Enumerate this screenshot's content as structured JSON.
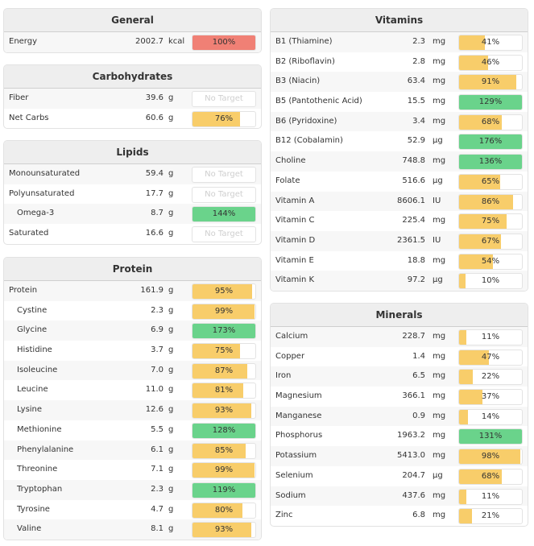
{
  "colors": {
    "under": "#f8cd6a",
    "over": "#6ad38b",
    "energy": "#f08075"
  },
  "panels": [
    {
      "id": "general",
      "title": "General",
      "side": "L",
      "items": [
        {
          "name": "Energy",
          "value": "2002.7",
          "unit": "kcal",
          "pct": 100,
          "label": "100%",
          "color": "energy"
        }
      ]
    },
    {
      "id": "carbohydrates",
      "title": "Carbohydrates",
      "side": "L",
      "items": [
        {
          "name": "Fiber",
          "value": "39.6",
          "unit": "g",
          "pct": null,
          "label": "No Target"
        },
        {
          "name": "Net Carbs",
          "value": "60.6",
          "unit": "g",
          "pct": 76,
          "label": "76%"
        }
      ]
    },
    {
      "id": "lipids",
      "title": "Lipids",
      "side": "L",
      "items": [
        {
          "name": "Monounsaturated",
          "value": "59.4",
          "unit": "g",
          "pct": null,
          "label": "No Target"
        },
        {
          "name": "Polyunsaturated",
          "value": "17.7",
          "unit": "g",
          "pct": null,
          "label": "No Target"
        },
        {
          "name": "Omega-3",
          "value": "8.7",
          "unit": "g",
          "pct": 144,
          "label": "144%",
          "indent": true
        },
        {
          "name": "Saturated",
          "value": "16.6",
          "unit": "g",
          "pct": null,
          "label": "No Target"
        }
      ]
    },
    {
      "id": "protein",
      "title": "Protein",
      "side": "L",
      "items": [
        {
          "name": "Protein",
          "value": "161.9",
          "unit": "g",
          "pct": 95,
          "label": "95%"
        },
        {
          "name": "Cystine",
          "value": "2.3",
          "unit": "g",
          "pct": 99,
          "label": "99%",
          "indent": true
        },
        {
          "name": "Glycine",
          "value": "6.9",
          "unit": "g",
          "pct": 173,
          "label": "173%",
          "indent": true
        },
        {
          "name": "Histidine",
          "value": "3.7",
          "unit": "g",
          "pct": 75,
          "label": "75%",
          "indent": true
        },
        {
          "name": "Isoleucine",
          "value": "7.0",
          "unit": "g",
          "pct": 87,
          "label": "87%",
          "indent": true
        },
        {
          "name": "Leucine",
          "value": "11.0",
          "unit": "g",
          "pct": 81,
          "label": "81%",
          "indent": true
        },
        {
          "name": "Lysine",
          "value": "12.6",
          "unit": "g",
          "pct": 93,
          "label": "93%",
          "indent": true
        },
        {
          "name": "Methionine",
          "value": "5.5",
          "unit": "g",
          "pct": 128,
          "label": "128%",
          "indent": true
        },
        {
          "name": "Phenylalanine",
          "value": "6.1",
          "unit": "g",
          "pct": 85,
          "label": "85%",
          "indent": true
        },
        {
          "name": "Threonine",
          "value": "7.1",
          "unit": "g",
          "pct": 99,
          "label": "99%",
          "indent": true
        },
        {
          "name": "Tryptophan",
          "value": "2.3",
          "unit": "g",
          "pct": 119,
          "label": "119%",
          "indent": true
        },
        {
          "name": "Tyrosine",
          "value": "4.7",
          "unit": "g",
          "pct": 80,
          "label": "80%",
          "indent": true
        },
        {
          "name": "Valine",
          "value": "8.1",
          "unit": "g",
          "pct": 93,
          "label": "93%",
          "indent": true
        }
      ]
    },
    {
      "id": "vitamins",
      "title": "Vitamins",
      "side": "R",
      "items": [
        {
          "name": "B1 (Thiamine)",
          "value": "2.3",
          "unit": "mg",
          "pct": 41,
          "label": "41%"
        },
        {
          "name": "B2 (Riboflavin)",
          "value": "2.8",
          "unit": "mg",
          "pct": 46,
          "label": "46%"
        },
        {
          "name": "B3 (Niacin)",
          "value": "63.4",
          "unit": "mg",
          "pct": 91,
          "label": "91%"
        },
        {
          "name": "B5 (Pantothenic Acid)",
          "value": "15.5",
          "unit": "mg",
          "pct": 129,
          "label": "129%"
        },
        {
          "name": "B6 (Pyridoxine)",
          "value": "3.4",
          "unit": "mg",
          "pct": 68,
          "label": "68%"
        },
        {
          "name": "B12 (Cobalamin)",
          "value": "52.9",
          "unit": "µg",
          "pct": 176,
          "label": "176%"
        },
        {
          "name": "Choline",
          "value": "748.8",
          "unit": "mg",
          "pct": 136,
          "label": "136%"
        },
        {
          "name": "Folate",
          "value": "516.6",
          "unit": "µg",
          "pct": 65,
          "label": "65%"
        },
        {
          "name": "Vitamin A",
          "value": "8606.1",
          "unit": "IU",
          "pct": 86,
          "label": "86%"
        },
        {
          "name": "Vitamin C",
          "value": "225.4",
          "unit": "mg",
          "pct": 75,
          "label": "75%"
        },
        {
          "name": "Vitamin D",
          "value": "2361.5",
          "unit": "IU",
          "pct": 67,
          "label": "67%"
        },
        {
          "name": "Vitamin E",
          "value": "18.8",
          "unit": "mg",
          "pct": 54,
          "label": "54%"
        },
        {
          "name": "Vitamin K",
          "value": "97.2",
          "unit": "µg",
          "pct": 10,
          "label": "10%"
        }
      ]
    },
    {
      "id": "minerals",
      "title": "Minerals",
      "side": "R",
      "items": [
        {
          "name": "Calcium",
          "value": "228.7",
          "unit": "mg",
          "pct": 11,
          "label": "11%"
        },
        {
          "name": "Copper",
          "value": "1.4",
          "unit": "mg",
          "pct": 47,
          "label": "47%"
        },
        {
          "name": "Iron",
          "value": "6.5",
          "unit": "mg",
          "pct": 22,
          "label": "22%"
        },
        {
          "name": "Magnesium",
          "value": "366.1",
          "unit": "mg",
          "pct": 37,
          "label": "37%"
        },
        {
          "name": "Manganese",
          "value": "0.9",
          "unit": "mg",
          "pct": 14,
          "label": "14%"
        },
        {
          "name": "Phosphorus",
          "value": "1963.2",
          "unit": "mg",
          "pct": 131,
          "label": "131%"
        },
        {
          "name": "Potassium",
          "value": "5413.0",
          "unit": "mg",
          "pct": 98,
          "label": "98%"
        },
        {
          "name": "Selenium",
          "value": "204.7",
          "unit": "µg",
          "pct": 68,
          "label": "68%"
        },
        {
          "name": "Sodium",
          "value": "437.6",
          "unit": "mg",
          "pct": 11,
          "label": "11%"
        },
        {
          "name": "Zinc",
          "value": "6.8",
          "unit": "mg",
          "pct": 21,
          "label": "21%"
        }
      ]
    }
  ]
}
